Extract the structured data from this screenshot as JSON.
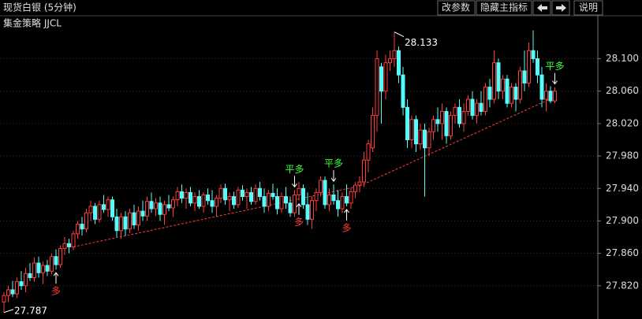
{
  "header": {
    "title": "现货白银 (5分钟)",
    "indicator": "集金策略 JJCL",
    "buttons": [
      "改参数",
      "隐藏主指标",
      "说明"
    ]
  },
  "chart_data": {
    "type": "candlestick",
    "up_color": "#ff3c3c",
    "down_color": "#54fcfc",
    "trend_color": "#ff3c3c",
    "ylim": [
      27.779,
      28.153
    ],
    "yticks": [
      {
        "value": 27.82,
        "label": "27.820"
      },
      {
        "value": 27.86,
        "label": "27.860"
      },
      {
        "value": 27.9,
        "label": "27.900"
      },
      {
        "value": 27.94,
        "label": "27.940"
      },
      {
        "value": 27.98,
        "label": "27.980"
      },
      {
        "value": 28.02,
        "label": "28.020"
      },
      {
        "value": 28.06,
        "label": "28.060"
      },
      {
        "value": 28.1,
        "label": "28.100"
      }
    ],
    "grid": true,
    "candles": [
      [
        27.8,
        27.812,
        27.787,
        27.808
      ],
      [
        27.808,
        27.82,
        27.8,
        27.815
      ],
      [
        27.815,
        27.826,
        27.806,
        27.81
      ],
      [
        27.81,
        27.83,
        27.805,
        27.825
      ],
      [
        27.825,
        27.838,
        27.815,
        27.82
      ],
      [
        27.82,
        27.842,
        27.812,
        27.835
      ],
      [
        27.835,
        27.848,
        27.826,
        27.83
      ],
      [
        27.83,
        27.855,
        27.825,
        27.848
      ],
      [
        27.848,
        27.856,
        27.83,
        27.836
      ],
      [
        27.836,
        27.85,
        27.822,
        27.845
      ],
      [
        27.845,
        27.852,
        27.832,
        27.838
      ],
      [
        27.838,
        27.86,
        27.834,
        27.856
      ],
      [
        27.856,
        27.865,
        27.84,
        27.846
      ],
      [
        27.846,
        27.87,
        27.842,
        27.866
      ],
      [
        27.866,
        27.88,
        27.858,
        27.872
      ],
      [
        27.872,
        27.878,
        27.86,
        27.868
      ],
      [
        27.868,
        27.888,
        27.864,
        27.884
      ],
      [
        27.884,
        27.9,
        27.878,
        27.896
      ],
      [
        27.896,
        27.905,
        27.882,
        27.89
      ],
      [
        27.89,
        27.915,
        27.886,
        27.91
      ],
      [
        27.91,
        27.925,
        27.9,
        27.918
      ],
      [
        27.918,
        27.922,
        27.896,
        27.902
      ],
      [
        27.902,
        27.925,
        27.898,
        27.92
      ],
      [
        27.92,
        27.932,
        27.91,
        27.914
      ],
      [
        27.914,
        27.93,
        27.905,
        27.926
      ],
      [
        27.926,
        27.93,
        27.9,
        27.905
      ],
      [
        27.905,
        27.915,
        27.88,
        27.888
      ],
      [
        27.888,
        27.91,
        27.878,
        27.905
      ],
      [
        27.905,
        27.912,
        27.882,
        27.89
      ],
      [
        27.89,
        27.915,
        27.885,
        27.91
      ],
      [
        27.91,
        27.92,
        27.89,
        27.895
      ],
      [
        27.895,
        27.918,
        27.888,
        27.912
      ],
      [
        27.912,
        27.925,
        27.9,
        27.906
      ],
      [
        27.906,
        27.93,
        27.9,
        27.924
      ],
      [
        27.924,
        27.935,
        27.91,
        27.915
      ],
      [
        27.915,
        27.928,
        27.906,
        27.922
      ],
      [
        27.922,
        27.93,
        27.9,
        27.908
      ],
      [
        27.908,
        27.925,
        27.895,
        27.92
      ],
      [
        27.92,
        27.932,
        27.912,
        27.916
      ],
      [
        27.916,
        27.93,
        27.905,
        27.926
      ],
      [
        27.926,
        27.942,
        27.918,
        27.936
      ],
      [
        27.936,
        27.945,
        27.922,
        27.928
      ],
      [
        27.928,
        27.94,
        27.915,
        27.935
      ],
      [
        27.935,
        27.942,
        27.918,
        27.922
      ],
      [
        27.922,
        27.935,
        27.912,
        27.93
      ],
      [
        27.93,
        27.938,
        27.915,
        27.918
      ],
      [
        27.918,
        27.935,
        27.91,
        27.932
      ],
      [
        27.932,
        27.94,
        27.92,
        27.925
      ],
      [
        27.925,
        27.938,
        27.91,
        27.918
      ],
      [
        27.918,
        27.932,
        27.905,
        27.928
      ],
      [
        27.928,
        27.945,
        27.922,
        27.94
      ],
      [
        27.94,
        27.946,
        27.92,
        27.926
      ],
      [
        27.926,
        27.935,
        27.912,
        27.93
      ],
      [
        27.93,
        27.936,
        27.915,
        27.92
      ],
      [
        27.92,
        27.942,
        27.916,
        27.938
      ],
      [
        27.938,
        27.944,
        27.925,
        27.93
      ],
      [
        27.93,
        27.94,
        27.915,
        27.935
      ],
      [
        27.935,
        27.942,
        27.92,
        27.924
      ],
      [
        27.924,
        27.945,
        27.92,
        27.94
      ],
      [
        27.94,
        27.948,
        27.925,
        27.93
      ],
      [
        27.93,
        27.94,
        27.91,
        27.918
      ],
      [
        27.918,
        27.938,
        27.912,
        27.934
      ],
      [
        27.934,
        27.946,
        27.926,
        27.93
      ],
      [
        27.93,
        27.94,
        27.908,
        27.915
      ],
      [
        27.915,
        27.935,
        27.91,
        27.93
      ],
      [
        27.93,
        27.942,
        27.915,
        27.922
      ],
      [
        27.922,
        27.93,
        27.905,
        27.91
      ],
      [
        27.91,
        27.938,
        27.905,
        27.932
      ],
      [
        27.932,
        27.948,
        27.925,
        27.94
      ],
      [
        27.94,
        27.945,
        27.915,
        27.92
      ],
      [
        27.92,
        27.935,
        27.895,
        27.902
      ],
      [
        27.902,
        27.93,
        27.89,
        27.925
      ],
      [
        27.925,
        27.94,
        27.912,
        27.935
      ],
      [
        27.935,
        27.955,
        27.93,
        27.95
      ],
      [
        27.95,
        27.955,
        27.915,
        27.92
      ],
      [
        27.92,
        27.94,
        27.912,
        27.932
      ],
      [
        27.932,
        27.945,
        27.92,
        27.925
      ],
      [
        27.925,
        27.938,
        27.905,
        27.915
      ],
      [
        27.915,
        27.935,
        27.91,
        27.93
      ],
      [
        27.93,
        27.945,
        27.918,
        27.922
      ],
      [
        27.922,
        27.94,
        27.915,
        27.936
      ],
      [
        27.936,
        27.948,
        27.928,
        27.944
      ],
      [
        27.944,
        27.955,
        27.935,
        27.948
      ],
      [
        27.948,
        27.985,
        27.942,
        27.975
      ],
      [
        27.975,
        28.0,
        27.96,
        27.995
      ],
      [
        27.99,
        28.04,
        27.985,
        28.03
      ],
      [
        28.03,
        28.11,
        28.01,
        28.1
      ],
      [
        28.09,
        28.095,
        28.02,
        28.06
      ],
      [
        28.06,
        28.105,
        28.05,
        28.095
      ],
      [
        28.095,
        28.11,
        28.085,
        28.1
      ],
      [
        28.1,
        28.133,
        28.09,
        28.11
      ],
      [
        28.11,
        28.115,
        28.07,
        28.08
      ],
      [
        28.08,
        28.09,
        28.03,
        28.04
      ],
      [
        28.04,
        28.05,
        27.99,
        28.0
      ],
      [
        28.0,
        28.03,
        27.99,
        28.025
      ],
      [
        28.025,
        28.03,
        27.985,
        27.995
      ],
      [
        27.995,
        28.02,
        27.988,
        28.012
      ],
      [
        28.012,
        28.02,
        27.93,
        27.99
      ],
      [
        27.99,
        28.015,
        27.98,
        28.01
      ],
      [
        28.01,
        28.03,
        28.0,
        28.025
      ],
      [
        28.025,
        28.04,
        28.01,
        28.02
      ],
      [
        28.02,
        28.045,
        28.0,
        28.035
      ],
      [
        28.035,
        28.04,
        27.995,
        28.005
      ],
      [
        28.005,
        28.035,
        28.0,
        28.03
      ],
      [
        28.03,
        28.045,
        28.02,
        28.04
      ],
      [
        28.04,
        28.05,
        28.015,
        28.02
      ],
      [
        28.02,
        28.045,
        28.01,
        28.035
      ],
      [
        28.035,
        28.055,
        28.03,
        28.05
      ],
      [
        28.05,
        28.06,
        28.025,
        28.03
      ],
      [
        28.03,
        28.05,
        28.02,
        28.045
      ],
      [
        28.045,
        28.06,
        28.03,
        28.035
      ],
      [
        28.035,
        28.07,
        28.03,
        28.065
      ],
      [
        28.065,
        28.075,
        28.04,
        28.05
      ],
      [
        28.05,
        28.11,
        28.045,
        28.095
      ],
      [
        28.095,
        28.1,
        28.05,
        28.06
      ],
      [
        28.06,
        28.08,
        28.05,
        28.075
      ],
      [
        28.075,
        28.08,
        28.04,
        28.045
      ],
      [
        28.045,
        28.07,
        28.04,
        28.065
      ],
      [
        28.065,
        28.07,
        28.035,
        28.05
      ],
      [
        28.05,
        28.09,
        28.045,
        28.085
      ],
      [
        28.085,
        28.11,
        28.06,
        28.07
      ],
      [
        28.07,
        28.12,
        28.065,
        28.11
      ],
      [
        28.11,
        28.135,
        28.095,
        28.1
      ],
      [
        28.1,
        28.11,
        28.07,
        28.08
      ],
      [
        28.08,
        28.09,
        28.04,
        28.05
      ],
      [
        28.05,
        28.07,
        28.035,
        28.06
      ],
      [
        28.06,
        28.066,
        28.045,
        28.048
      ],
      [
        28.048,
        28.065,
        28.045,
        28.06
      ]
    ],
    "extremes": [
      {
        "value": 28.133,
        "index": 90,
        "side": "high"
      },
      {
        "value": 27.787,
        "index": 0,
        "side": "low"
      }
    ],
    "signals": [
      {
        "label": "多",
        "index": 12,
        "side": "buy",
        "color": "#ff3c3c"
      },
      {
        "label": "平多",
        "index": 67,
        "side": "close",
        "color": "#3cff3c"
      },
      {
        "label": "多",
        "index": 68,
        "side": "buy",
        "color": "#ff3c3c"
      },
      {
        "label": "平多",
        "index": 76,
        "side": "close",
        "color": "#3cff3c"
      },
      {
        "label": "多",
        "index": 79,
        "side": "buy",
        "color": "#ff3c3c"
      },
      {
        "label": "平多",
        "index": 127,
        "side": "close",
        "color": "#3cff3c"
      }
    ],
    "trend_lines": [
      [
        [
          16,
          27.868
        ],
        [
          82,
          27.943
        ]
      ],
      [
        [
          82,
          27.943
        ],
        [
          127,
          28.053
        ]
      ]
    ]
  }
}
